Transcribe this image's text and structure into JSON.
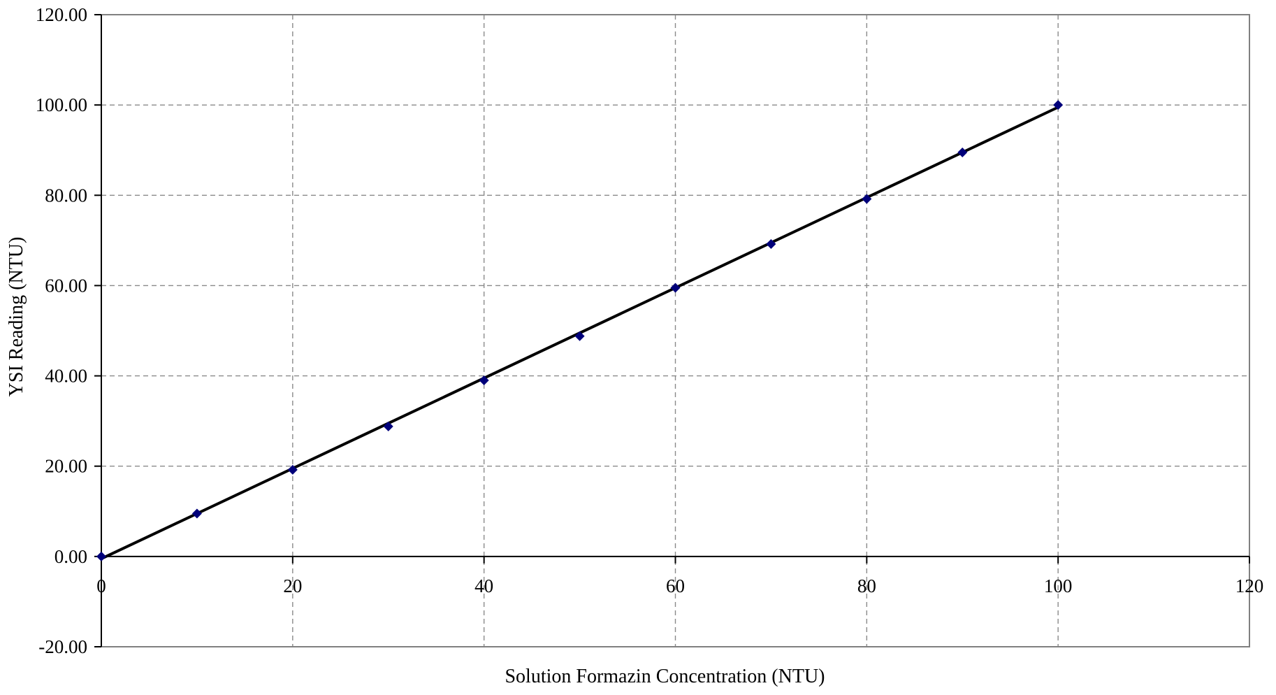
{
  "chart_data": {
    "type": "scatter",
    "title": "",
    "xlabel": "Solution Formazin Concentration (NTU)",
    "ylabel": "YSI Reading (NTU)",
    "xlim": [
      0,
      120
    ],
    "ylim": [
      -20,
      120
    ],
    "x_ticks": [
      "0",
      "20",
      "40",
      "60",
      "80",
      "100",
      "120"
    ],
    "y_ticks": [
      "-20.00",
      "0.00",
      "20.00",
      "40.00",
      "60.00",
      "80.00",
      "100.00",
      "120.00"
    ],
    "grid": true,
    "legend": "none",
    "series": [
      {
        "marker": "diamond",
        "color": "#00007a",
        "points": [
          {
            "x": 0,
            "y": 0.0
          },
          {
            "x": 10,
            "y": 9.5
          },
          {
            "x": 20,
            "y": 19.2
          },
          {
            "x": 30,
            "y": 28.8
          },
          {
            "x": 40,
            "y": 39.0
          },
          {
            "x": 50,
            "y": 48.8
          },
          {
            "x": 60,
            "y": 59.5
          },
          {
            "x": 70,
            "y": 69.2
          },
          {
            "x": 80,
            "y": 79.2
          },
          {
            "x": 90,
            "y": 89.5
          },
          {
            "x": 100,
            "y": 100.0
          }
        ]
      }
    ],
    "trendline": {
      "color": "#000000",
      "x_range": [
        0,
        100
      ],
      "y_range": [
        -0.5,
        99.5
      ]
    }
  }
}
